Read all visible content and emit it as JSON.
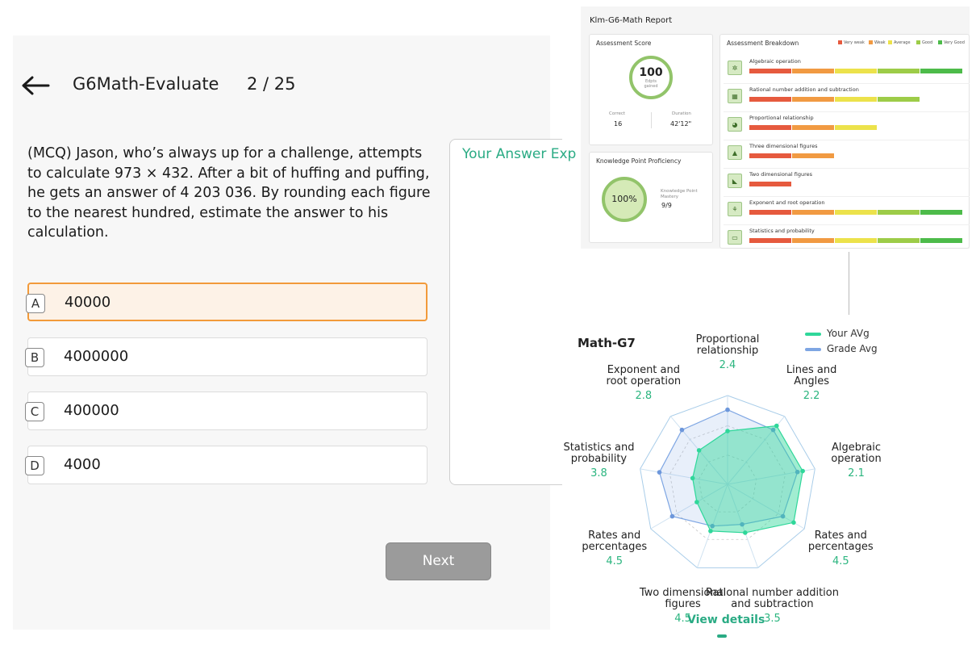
{
  "quiz": {
    "title": "G6Math-Evaluate",
    "progress": "2 / 25",
    "question": "(MCQ) Jason, who’s always up for a challenge, attempts to calculate 973 × 432. After a bit of huffing and puffing, he gets an answer of 4 203 036. By rounding each figure to the nearest hundred, estimate the answer to his calculation.",
    "options": [
      {
        "letter": "A",
        "text": "40000",
        "selected": true
      },
      {
        "letter": "B",
        "text": "4000000",
        "selected": false
      },
      {
        "letter": "C",
        "text": "400000",
        "selected": false
      },
      {
        "letter": "D",
        "text": "4000",
        "selected": false
      }
    ],
    "answer_label": "Your Answer Exp",
    "next_label": "Next"
  },
  "report": {
    "title": "Klm-G6-Math Report",
    "score_card": {
      "title": "Assessment Score",
      "score": "100",
      "score_sub1": "Edpts",
      "score_sub2": "gained",
      "correct_label": "Correct",
      "correct_value": "16",
      "duration_label": "Duration",
      "duration_value": "42'12\""
    },
    "proficiency_card": {
      "title": "Knowledge Point Proficiency",
      "percent": "100%",
      "mastery_label1": "Knowledge Point",
      "mastery_label2": "Mastery",
      "mastery_value": "9/9"
    },
    "breakdown": {
      "title": "Assessment Breakdown",
      "legend": [
        {
          "label": "Very weak",
          "color": "#e65a3e"
        },
        {
          "label": "Weak",
          "color": "#f19a42"
        },
        {
          "label": "Average",
          "color": "#ece24b"
        },
        {
          "label": "Good",
          "color": "#9dcc48"
        },
        {
          "label": "Very Good",
          "color": "#4dbb4a"
        }
      ],
      "rows": [
        {
          "label": "Algebraic operation",
          "icon": "✲",
          "level": 5
        },
        {
          "label": "Rational number addition and subtraction",
          "icon": "▦",
          "level": 4
        },
        {
          "label": "Proportional relationship",
          "icon": "◕",
          "level": 3
        },
        {
          "label": "Three dimensional figures",
          "icon": "▲",
          "level": 2
        },
        {
          "label": "Two dimensional figures",
          "icon": "◣",
          "level": 1
        },
        {
          "label": "Exponent and root operation",
          "icon": "⚘",
          "level": 5
        },
        {
          "label": "Statistics and probability",
          "icon": "▭",
          "level": 5
        }
      ]
    }
  },
  "radar": {
    "title": "Math-G7",
    "legend": [
      {
        "label": "Your AVg",
        "color": "#2fd79a"
      },
      {
        "label": "Grade Avg",
        "color": "#7ea6e3"
      }
    ],
    "view_details": "View details",
    "chart_data": {
      "type": "radar",
      "scale_max": 5,
      "axes": [
        {
          "label": "Proportional relationship",
          "line1": "Proportional",
          "line2": "relationship",
          "value": "2.4"
        },
        {
          "label": "Lines and Angles",
          "line1": "Lines and",
          "line2": "Angles",
          "value": "2.2"
        },
        {
          "label": "Algebraic operation",
          "line1": "Algebraic",
          "line2": "operation",
          "value": "2.1"
        },
        {
          "label": "Rates and percentages",
          "line1": "Rates and",
          "line2": "percentages",
          "value": "4.5"
        },
        {
          "label": "Rational number addition and subtraction",
          "line1": "Rational number addition",
          "line2": "and subtraction",
          "value": "3.5"
        },
        {
          "label": "Two dimensional figures",
          "line1": "Two dimensional",
          "line2": "figures",
          "value": "4.5"
        },
        {
          "label": "Rates and percentages",
          "line1": "Rates and",
          "line2": "percentages",
          "value": "4.5"
        },
        {
          "label": "Statistics and probability",
          "line1": "Statistics and",
          "line2": "probability",
          "value": "3.8"
        },
        {
          "label": "Exponent and root operation",
          "line1": "Exponent and",
          "line2": "root operation",
          "value": "2.8"
        }
      ],
      "series": [
        {
          "name": "Your AVg",
          "values": [
            3.0,
            4.3,
            4.3,
            4.3,
            2.9,
            2.8,
            2.0,
            2.0,
            2.5
          ]
        },
        {
          "name": "Grade Avg",
          "values": [
            4.2,
            4.0,
            4.0,
            3.6,
            2.4,
            2.5,
            3.6,
            3.9,
            4.0
          ]
        }
      ]
    }
  }
}
